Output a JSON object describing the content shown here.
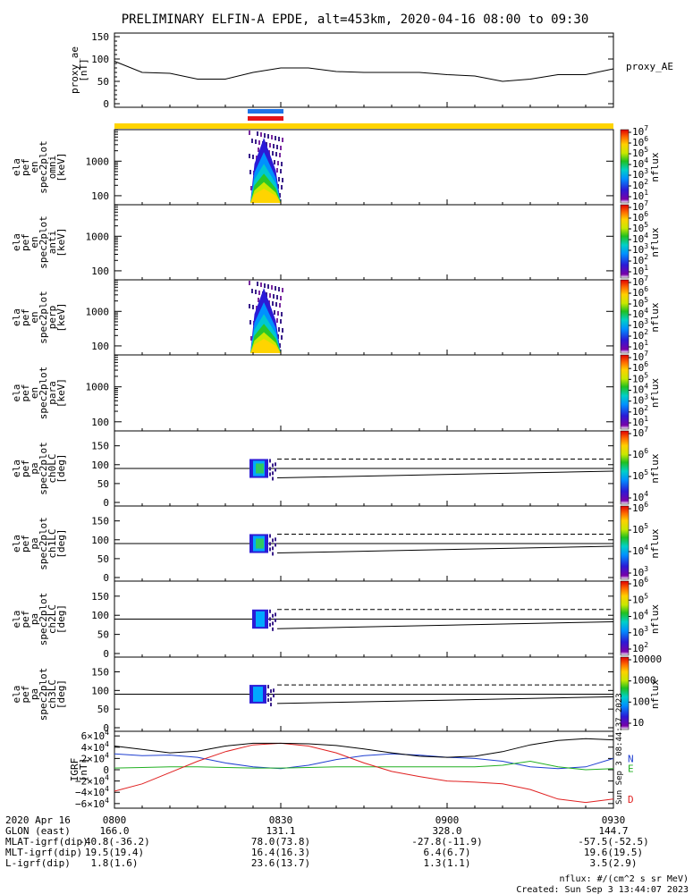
{
  "title": "PRELIMINARY ELFIN-A EPDE, alt=453km, 2020-04-16 08:00 to 09:30",
  "chart_data": [
    {
      "type": "line",
      "panel": "proxy_ae",
      "ylabel": [
        "proxy_ae",
        "[nT]"
      ],
      "legend": "proxy_AE",
      "ylim": [
        0,
        150
      ],
      "yticks": [
        "150",
        "100",
        "50",
        "0"
      ],
      "x": [
        "08:00",
        "08:05",
        "08:10",
        "08:15",
        "08:20",
        "08:25",
        "08:30",
        "08:35",
        "08:40",
        "08:45",
        "08:50",
        "08:55",
        "09:00",
        "09:05",
        "09:10",
        "09:15",
        "09:20",
        "09:25",
        "09:30"
      ],
      "values": [
        95,
        70,
        68,
        55,
        55,
        70,
        80,
        80,
        72,
        70,
        70,
        70,
        65,
        62,
        50,
        55,
        65,
        65,
        78
      ]
    },
    {
      "type": "heatmap",
      "panel": "omni",
      "ylabel": [
        "ela",
        "pef",
        "en",
        "spec2plot",
        "omni",
        "[keV]"
      ],
      "yticks": [
        "1000",
        "100"
      ],
      "zlabel": "nflux",
      "zticks": [
        "10^7",
        "10^6",
        "10^5",
        "10^4",
        "10^3",
        "10^2",
        "10^1"
      ]
    },
    {
      "type": "heatmap",
      "panel": "anti",
      "ylabel": [
        "ela",
        "pef",
        "en",
        "spec2plot",
        "anti",
        "[keV]"
      ],
      "yticks": [
        "1000",
        "100"
      ],
      "zlabel": "nflux",
      "zticks": [
        "10^7",
        "10^6",
        "10^5",
        "10^4",
        "10^3",
        "10^2",
        "10^1"
      ]
    },
    {
      "type": "heatmap",
      "panel": "perp",
      "ylabel": [
        "ela",
        "pef",
        "en",
        "spec2plot",
        "perp",
        "[keV]"
      ],
      "yticks": [
        "1000",
        "100"
      ],
      "zlabel": "nflux",
      "zticks": [
        "10^7",
        "10^6",
        "10^5",
        "10^4",
        "10^3",
        "10^2",
        "10^1"
      ]
    },
    {
      "type": "heatmap",
      "panel": "para",
      "ylabel": [
        "ela",
        "pef",
        "en",
        "spec2plot",
        "para",
        "[keV]"
      ],
      "yticks": [
        "1000",
        "100"
      ],
      "zlabel": "nflux",
      "zticks": [
        "10^7",
        "10^6",
        "10^5",
        "10^4",
        "10^3",
        "10^2",
        "10^1"
      ]
    },
    {
      "type": "heatmap",
      "panel": "ch0LC",
      "ylabel": [
        "ela",
        "pef",
        "pa",
        "spec2plot",
        "ch0LC",
        "[deg]"
      ],
      "ylim": [
        0,
        180
      ],
      "yticks": [
        "150",
        "100",
        "50",
        "0"
      ],
      "zlabel": "nflux",
      "zticks": [
        "10^7",
        "10^6",
        "10^5",
        "10^4"
      ]
    },
    {
      "type": "heatmap",
      "panel": "ch1LC",
      "ylabel": [
        "ela",
        "pef",
        "pa",
        "spec2plot",
        "ch1LC",
        "[deg]"
      ],
      "ylim": [
        0,
        180
      ],
      "yticks": [
        "150",
        "100",
        "50",
        "0"
      ],
      "zlabel": "nflux",
      "zticks": [
        "10^6",
        "10^5",
        "10^4",
        "10^3"
      ]
    },
    {
      "type": "heatmap",
      "panel": "ch2LC",
      "ylabel": [
        "ela",
        "pef",
        "pa",
        "spec2plot",
        "ch2LC",
        "[deg]"
      ],
      "ylim": [
        0,
        180
      ],
      "yticks": [
        "150",
        "100",
        "50",
        "0"
      ],
      "zlabel": "nflux",
      "zticks": [
        "10^6",
        "10^5",
        "10^4",
        "10^3",
        "10^2"
      ]
    },
    {
      "type": "heatmap",
      "panel": "ch3LC",
      "ylabel": [
        "ela",
        "pef",
        "pa",
        "spec2plot",
        "ch3LC",
        "[deg]"
      ],
      "ylim": [
        0,
        180
      ],
      "yticks": [
        "150",
        "100",
        "50",
        "0"
      ],
      "zlabel": "nflux",
      "zticks": [
        "10000",
        "1000",
        "100",
        "10"
      ]
    },
    {
      "type": "line",
      "panel": "IGRF",
      "ylabel": [
        "IGRF",
        "[nT]"
      ],
      "ylim": [
        -65000,
        65000
      ],
      "yticks": [
        "6×10^4",
        "4×10^4",
        "2×10^4",
        "0",
        "−2×10^4",
        "−4×10^4",
        "−6×10^4"
      ],
      "x": [
        "08:00",
        "08:05",
        "08:10",
        "08:15",
        "08:20",
        "08:25",
        "08:30",
        "08:35",
        "08:40",
        "08:45",
        "08:50",
        "08:55",
        "09:00",
        "09:05",
        "09:10",
        "09:15",
        "09:20",
        "09:25",
        "09:30"
      ],
      "series": [
        {
          "name": "N",
          "color": "#1f3fd1",
          "values": [
            28000,
            25000,
            26000,
            22000,
            12000,
            5000,
            2000,
            8000,
            18000,
            25000,
            28000,
            26000,
            22000,
            20000,
            15000,
            5000,
            2000,
            5000,
            20000
          ]
        },
        {
          "name": "E",
          "color": "#22b022",
          "values": [
            3000,
            4000,
            5000,
            5000,
            4000,
            3000,
            3000,
            4000,
            5000,
            5000,
            5000,
            5000,
            5000,
            5000,
            8000,
            15000,
            5000,
            0,
            2000
          ]
        },
        {
          "name": "D",
          "color": "#e02020",
          "values": [
            -38000,
            -25000,
            -5000,
            15000,
            32000,
            44000,
            47000,
            42000,
            30000,
            12000,
            -3000,
            -12000,
            -20000,
            -22000,
            -25000,
            -35000,
            -52000,
            -58000,
            -52000
          ]
        },
        {
          "name": "",
          "color": "#000000",
          "values": [
            42000,
            36000,
            30000,
            33000,
            42000,
            47000,
            47000,
            46000,
            43000,
            37000,
            30000,
            24000,
            22000,
            24000,
            32000,
            44000,
            52000,
            55000,
            53000
          ]
        }
      ]
    }
  ],
  "side_text": "Sun Sep 3 08:44:37 2023",
  "footer": {
    "rows": [
      {
        "label": "2020 Apr 16",
        "values": [
          "0800",
          "0830",
          "0900",
          "0930"
        ]
      },
      {
        "label": "GLON (east)",
        "values": [
          "166.0",
          "131.1",
          "328.0",
          "144.7"
        ]
      },
      {
        "label": "MLAT-igrf(dip)",
        "values": [
          "-40.8(-36.2)",
          "78.0(73.8)",
          "-27.8(-11.9)",
          "-57.5(-52.5)"
        ]
      },
      {
        "label": "MLT-igrf(dip)",
        "values": [
          "19.5(19.4)",
          "16.4(16.3)",
          "6.4(6.7)",
          "19.6(19.5)"
        ]
      },
      {
        "label": "L-igrf(dip)",
        "values": [
          "1.8(1.6)",
          "23.6(13.7)",
          "1.3(1.1)",
          "3.5(2.9)"
        ]
      }
    ],
    "units_note": "nflux: #/(cm^2 s sr MeV)",
    "created": "Created: Sun Sep  3 13:44:07 2023"
  },
  "colors": {
    "status_bar": "#ffd400",
    "mark_blue": "#1e73e8",
    "mark_red": "#e4141b"
  }
}
